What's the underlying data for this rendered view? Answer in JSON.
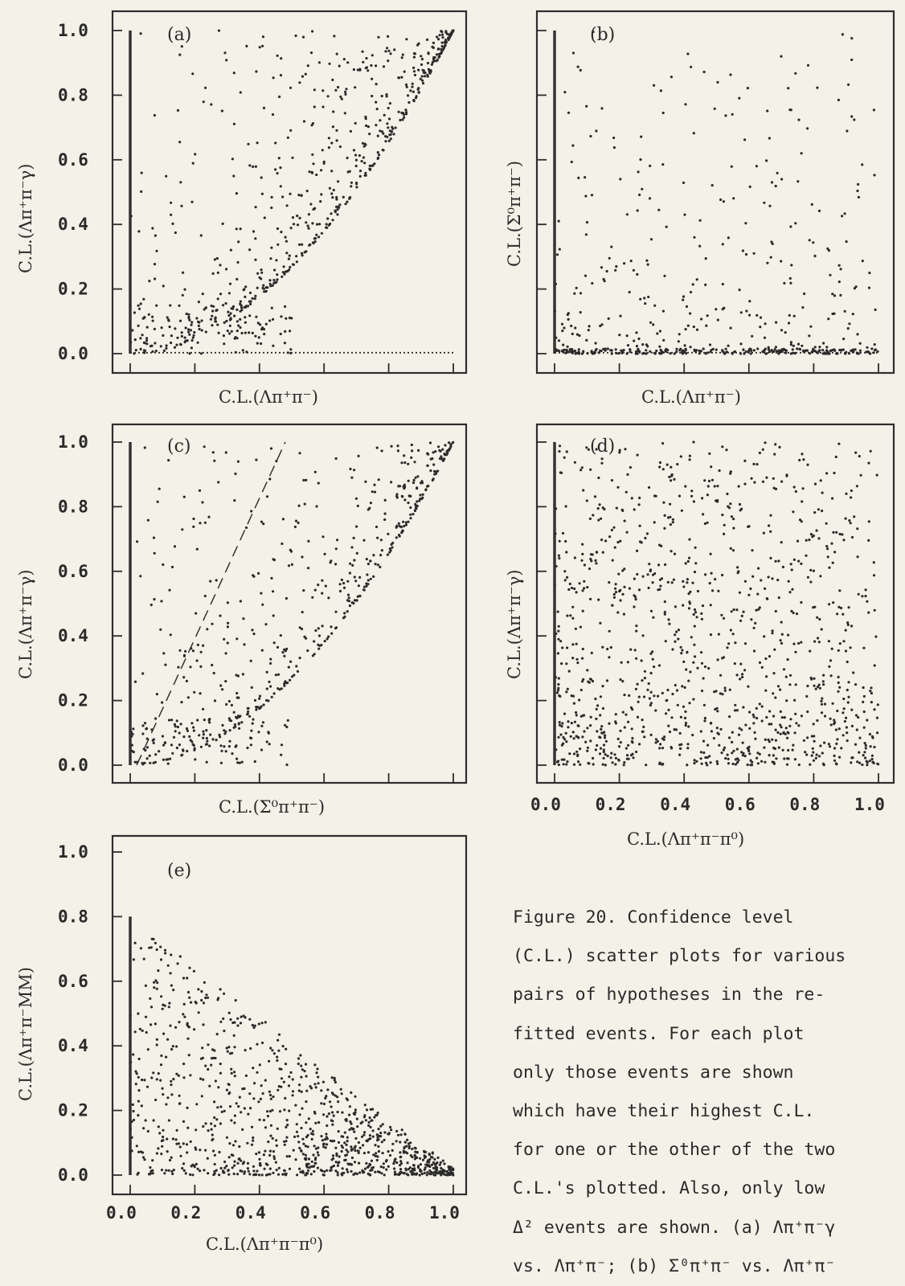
{
  "chart_data": [
    {
      "id": "a",
      "type": "scatter",
      "tag": "(a)",
      "xlabel": "C.L.(Λπ⁺π⁻)",
      "ylabel": "C.L.(Λπ⁺π⁻γ)",
      "xlim": [
        0,
        1
      ],
      "ylim": [
        0,
        1
      ],
      "yticks": [
        "1.0",
        "0.8",
        "0.6",
        "0.4",
        "0.2",
        "0.0"
      ],
      "xticks": [],
      "distribution": "above-diagonal-convex",
      "seed": 11,
      "n": 700
    },
    {
      "id": "b",
      "type": "scatter",
      "tag": "(b)",
      "xlabel": "C.L.(Λπ⁺π⁻)",
      "ylabel": "C.L.(Σ⁰π⁺π⁻)",
      "xlim": [
        0,
        1
      ],
      "ylim": [
        0,
        1
      ],
      "yticks": [],
      "xticks": [],
      "distribution": "low-y-spread",
      "seed": 23,
      "n": 520
    },
    {
      "id": "c",
      "type": "scatter",
      "tag": "(c)",
      "xlabel": "C.L.(Σ⁰π⁺π⁻)",
      "ylabel": "C.L.(Λπ⁺π⁻γ)",
      "xlim": [
        0,
        1
      ],
      "ylim": [
        0,
        1
      ],
      "yticks": [
        "1.0",
        "0.8",
        "0.6",
        "0.4",
        "0.2",
        "0.0"
      ],
      "xticks": [],
      "distribution": "above-diagonal-convex",
      "dashed_line": [
        [
          0.02,
          0.0
        ],
        [
          0.48,
          1.0
        ]
      ],
      "seed": 37,
      "n": 600
    },
    {
      "id": "d",
      "type": "scatter",
      "tag": "(d)",
      "xlabel": "C.L.(Λπ⁺π⁻π⁰)",
      "ylabel": "C.L.(Λπ⁺π⁻γ)",
      "xlim": [
        0,
        1
      ],
      "ylim": [
        0,
        1
      ],
      "yticks": [],
      "xticks": [
        "0.0",
        "0.2",
        "0.4",
        "0.6",
        "0.8",
        "1.0"
      ],
      "distribution": "uniform-low-heavy",
      "seed": 53,
      "n": 1100
    },
    {
      "id": "e",
      "type": "scatter",
      "tag": "(e)",
      "xlabel": "C.L.(Λπ⁺π⁻π⁰)",
      "ylabel": "C.L.(Λπ⁺π⁻MM)",
      "xlim": [
        0,
        1
      ],
      "ylim": [
        0,
        1
      ],
      "yticks": [
        "1.0",
        "0.8",
        "0.6",
        "0.4",
        "0.2",
        "0.0"
      ],
      "xticks": [
        "0.0",
        "0.2",
        "0.4",
        "0.6",
        "0.8",
        "1.0"
      ],
      "distribution": "below-falling-diagonal",
      "seed": 71,
      "n": 1000
    }
  ],
  "caption": {
    "lines": [
      "Figure 20.  Confidence level",
      "(C.L.) scatter plots for various",
      "pairs of hypotheses in the re-",
      "fitted events.  For each plot",
      "only those events are shown",
      "which have their highest C.L.",
      "for one or the other of the two",
      "C.L.'s plotted.  Also, only low",
      "Δ² events are shown.  (a) Λπ⁺π⁻γ",
      "vs. Λπ⁺π⁻; (b) Σ⁰π⁺π⁻ vs. Λπ⁺π⁻"
    ]
  }
}
